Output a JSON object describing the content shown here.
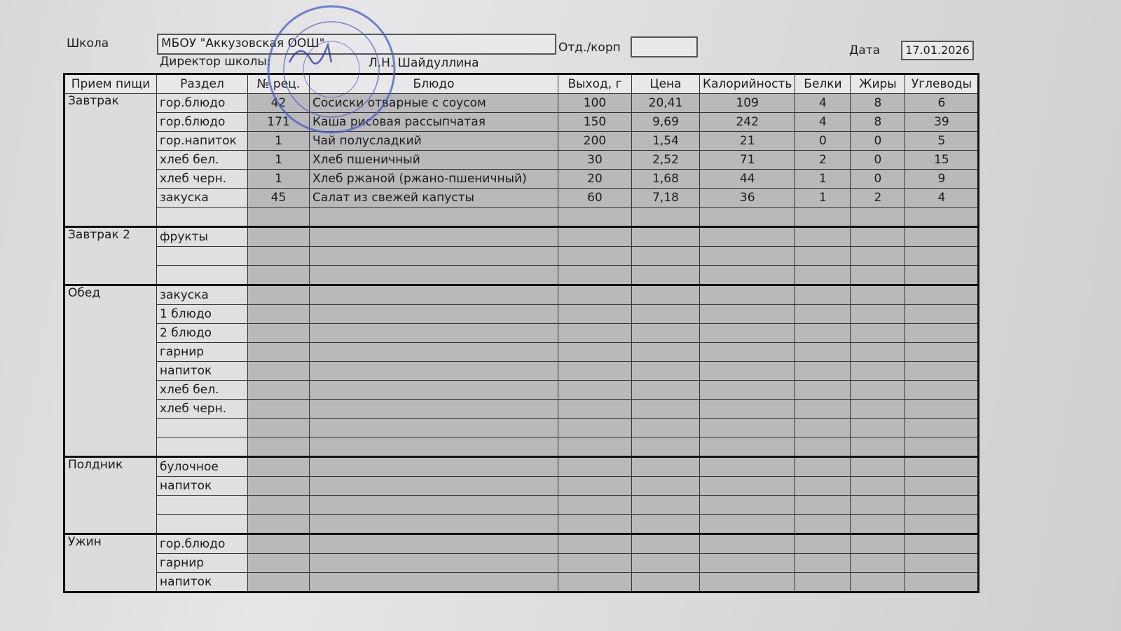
{
  "header": {
    "school_label": "Школа",
    "school_value": "МБОУ \"Аккузовская ООШ\"",
    "branch_label": "Отд./корп",
    "branch_value": "",
    "date_label": "Дата",
    "date_value": "17.01.2026",
    "director_label": "Директор школы:",
    "director_name": "Л.Н. Шайдуллина"
  },
  "stamp": {
    "text": "МБОУ «Аккузовская ООШ»",
    "color": "#4a5fc0"
  },
  "columns": [
    "Прием пищи",
    "Раздел",
    "№ рец.",
    "Блюдо",
    "Выход, г",
    "Цена",
    "Калорийность",
    "Белки",
    "Жиры",
    "Углеводы"
  ],
  "meals": [
    {
      "name": "Завтрак",
      "rows": [
        [
          "гор.блюдо",
          "42",
          "Сосиски отварные с соусом",
          "100",
          "20,41",
          "109",
          "4",
          "8",
          "6"
        ],
        [
          "гор.блюдо",
          "171",
          "Каша рисовая рассыпчатая",
          "150",
          "9,69",
          "242",
          "4",
          "8",
          "39"
        ],
        [
          "гор.напиток",
          "1",
          "Чай полусладкий",
          "200",
          "1,54",
          "21",
          "0",
          "0",
          "5"
        ],
        [
          "хлеб бел.",
          "1",
          "Хлеб пшеничный",
          "30",
          "2,52",
          "71",
          "2",
          "0",
          "15"
        ],
        [
          "хлеб черн.",
          "1",
          "Хлеб ржаной (ржано-пшеничный)",
          "20",
          "1,68",
          "44",
          "1",
          "0",
          "9"
        ],
        [
          "закуска",
          "45",
          "Салат из свежей капусты",
          "60",
          "7,18",
          "36",
          "1",
          "2",
          "4"
        ],
        [
          "",
          "",
          "",
          "",
          "",
          "",
          "",
          "",
          ""
        ]
      ]
    },
    {
      "name": "Завтрак 2",
      "rows": [
        [
          "фрукты",
          "",
          "",
          "",
          "",
          "",
          "",
          "",
          ""
        ],
        [
          "",
          "",
          "",
          "",
          "",
          "",
          "",
          "",
          ""
        ],
        [
          "",
          "",
          "",
          "",
          "",
          "",
          "",
          "",
          ""
        ]
      ]
    },
    {
      "name": "Обед",
      "rows": [
        [
          "закуска",
          "",
          "",
          "",
          "",
          "",
          "",
          "",
          ""
        ],
        [
          "1 блюдо",
          "",
          "",
          "",
          "",
          "",
          "",
          "",
          ""
        ],
        [
          "2 блюдо",
          "",
          "",
          "",
          "",
          "",
          "",
          "",
          ""
        ],
        [
          "гарнир",
          "",
          "",
          "",
          "",
          "",
          "",
          "",
          ""
        ],
        [
          "напиток",
          "",
          "",
          "",
          "",
          "",
          "",
          "",
          ""
        ],
        [
          "хлеб бел.",
          "",
          "",
          "",
          "",
          "",
          "",
          "",
          ""
        ],
        [
          "хлеб черн.",
          "",
          "",
          "",
          "",
          "",
          "",
          "",
          ""
        ],
        [
          "",
          "",
          "",
          "",
          "",
          "",
          "",
          "",
          ""
        ],
        [
          "",
          "",
          "",
          "",
          "",
          "",
          "",
          "",
          ""
        ]
      ]
    },
    {
      "name": "Полдник",
      "rows": [
        [
          "булочное",
          "",
          "",
          "",
          "",
          "",
          "",
          "",
          ""
        ],
        [
          "напиток",
          "",
          "",
          "",
          "",
          "",
          "",
          "",
          ""
        ],
        [
          "",
          "",
          "",
          "",
          "",
          "",
          "",
          "",
          ""
        ],
        [
          "",
          "",
          "",
          "",
          "",
          "",
          "",
          "",
          ""
        ]
      ]
    },
    {
      "name": "Ужин",
      "rows": [
        [
          "гор.блюдо",
          "",
          "",
          "",
          "",
          "",
          "",
          "",
          ""
        ],
        [
          "гарнир",
          "",
          "",
          "",
          "",
          "",
          "",
          "",
          ""
        ],
        [
          "напиток",
          "",
          "",
          "",
          "",
          "",
          "",
          "",
          ""
        ]
      ]
    }
  ]
}
